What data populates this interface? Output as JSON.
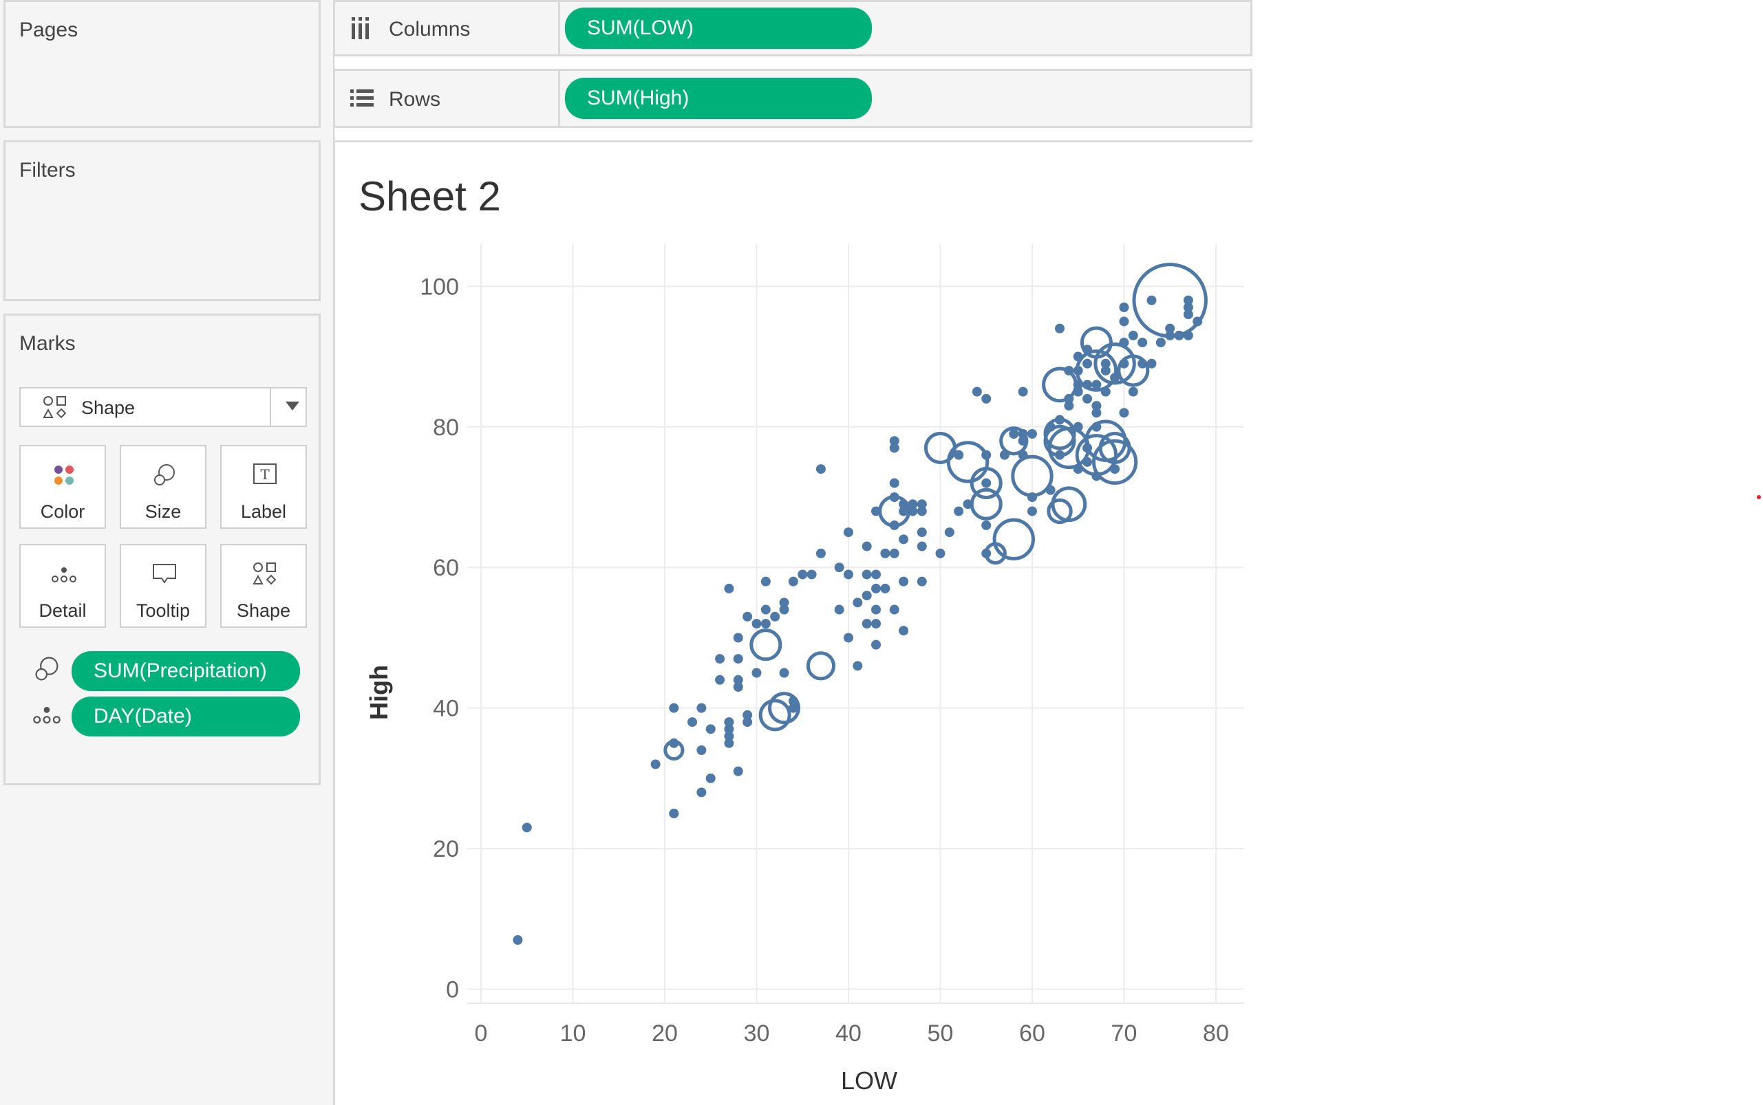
{
  "sidebar": {
    "pages_title": "Pages",
    "filters_title": "Filters",
    "marks": {
      "title": "Marks",
      "mark_type": "Shape",
      "cards": [
        {
          "label": "Color",
          "icon": "color-icon"
        },
        {
          "label": "Size",
          "icon": "size-icon"
        },
        {
          "label": "Label",
          "icon": "label-icon"
        },
        {
          "label": "Detail",
          "icon": "detail-icon"
        },
        {
          "label": "Tooltip",
          "icon": "tooltip-icon"
        },
        {
          "label": "Shape",
          "icon": "shape-icon"
        }
      ],
      "fields": [
        {
          "label": "SUM(Precipitation)",
          "icon": "size-icon"
        },
        {
          "label": "DAY(Date)",
          "icon": "detail-icon"
        }
      ]
    }
  },
  "shelves": {
    "columns": {
      "label": "Columns",
      "pill": "SUM(LOW)"
    },
    "rows": {
      "label": "Rows",
      "pill": "SUM(High)"
    }
  },
  "sheet": {
    "title": "Sheet 2"
  },
  "colors": {
    "mark": "#4e79a7",
    "pill": "#00b079",
    "grid": "#ececec"
  },
  "chart_data": {
    "type": "scatter",
    "xlabel": "LOW",
    "ylabel": "High",
    "xlim": [
      0,
      83
    ],
    "ylim": [
      -2,
      106
    ],
    "xticks": [
      0,
      10,
      20,
      30,
      40,
      50,
      60,
      70,
      80
    ],
    "yticks": [
      0,
      20,
      40,
      60,
      80,
      100
    ],
    "grid": true,
    "points": [
      [
        4,
        7,
        0
      ],
      [
        5,
        23,
        0
      ],
      [
        19,
        32,
        0
      ],
      [
        21,
        25,
        0
      ],
      [
        21,
        35,
        0
      ],
      [
        21,
        34,
        0.3
      ],
      [
        21,
        40,
        0
      ],
      [
        23,
        38,
        0
      ],
      [
        24,
        28,
        0
      ],
      [
        24,
        34,
        0
      ],
      [
        24,
        40,
        0
      ],
      [
        25,
        30,
        0
      ],
      [
        25,
        37,
        0
      ],
      [
        26,
        44,
        0
      ],
      [
        26,
        47,
        0
      ],
      [
        27,
        35,
        0
      ],
      [
        27,
        36,
        0
      ],
      [
        27,
        37,
        0
      ],
      [
        27,
        38,
        0
      ],
      [
        28,
        31,
        0
      ],
      [
        28,
        43,
        0
      ],
      [
        28,
        44,
        0
      ],
      [
        28,
        47,
        0
      ],
      [
        28,
        50,
        0
      ],
      [
        29,
        38,
        0
      ],
      [
        29,
        39,
        0
      ],
      [
        29,
        53,
        0
      ],
      [
        27,
        57,
        0
      ],
      [
        30,
        45,
        0
      ],
      [
        30,
        52,
        0
      ],
      [
        31,
        49,
        1.0
      ],
      [
        31,
        52,
        0
      ],
      [
        31,
        54,
        0
      ],
      [
        31,
        58,
        0
      ],
      [
        32,
        39,
        1.0
      ],
      [
        32,
        53,
        0
      ],
      [
        33,
        40,
        1.0
      ],
      [
        33,
        54,
        0
      ],
      [
        33,
        45,
        0
      ],
      [
        33,
        55,
        0
      ],
      [
        34,
        40,
        0
      ],
      [
        34,
        41,
        0
      ],
      [
        34,
        58,
        0
      ],
      [
        35,
        59,
        0
      ],
      [
        36,
        59,
        0
      ],
      [
        37,
        46,
        0.8
      ],
      [
        37,
        62,
        0
      ],
      [
        37,
        74,
        0
      ],
      [
        39,
        54,
        0
      ],
      [
        39,
        60,
        0
      ],
      [
        40,
        50,
        0
      ],
      [
        40,
        59,
        0
      ],
      [
        40,
        65,
        0
      ],
      [
        41,
        46,
        0
      ],
      [
        41,
        55,
        0
      ],
      [
        42,
        52,
        0
      ],
      [
        42,
        56,
        0
      ],
      [
        42,
        59,
        0
      ],
      [
        42,
        63,
        0
      ],
      [
        43,
        49,
        0
      ],
      [
        43,
        52,
        0
      ],
      [
        43,
        54,
        0
      ],
      [
        43,
        57,
        0
      ],
      [
        43,
        59,
        0
      ],
      [
        43,
        68,
        0
      ],
      [
        44,
        57,
        0
      ],
      [
        44,
        62,
        0
      ],
      [
        45,
        54,
        0
      ],
      [
        45,
        62,
        0
      ],
      [
        45,
        66,
        0
      ],
      [
        45,
        70,
        0
      ],
      [
        45,
        72,
        0
      ],
      [
        45,
        77,
        0
      ],
      [
        45,
        78,
        0
      ],
      [
        45,
        68,
        1.0
      ],
      [
        46,
        51,
        0
      ],
      [
        46,
        58,
        0
      ],
      [
        46,
        64,
        0
      ],
      [
        46,
        68,
        0
      ],
      [
        46,
        69,
        0
      ],
      [
        47,
        68,
        0
      ],
      [
        47,
        69,
        0
      ],
      [
        48,
        63,
        0
      ],
      [
        48,
        65,
        0
      ],
      [
        48,
        68,
        0
      ],
      [
        48,
        69,
        0
      ],
      [
        48,
        58,
        0
      ],
      [
        50,
        62,
        0
      ],
      [
        50,
        77,
        1.0
      ],
      [
        51,
        65,
        0
      ],
      [
        52,
        68,
        0
      ],
      [
        52,
        76,
        0
      ],
      [
        53,
        69,
        0
      ],
      [
        53,
        75,
        1.6
      ],
      [
        54,
        85,
        0
      ],
      [
        55,
        62,
        0
      ],
      [
        55,
        66,
        0
      ],
      [
        55,
        69,
        1.0
      ],
      [
        55,
        72,
        1.0
      ],
      [
        55,
        72,
        0
      ],
      [
        55,
        76,
        0
      ],
      [
        55,
        84,
        0
      ],
      [
        56,
        62,
        0.4
      ],
      [
        57,
        76,
        0
      ],
      [
        58,
        64,
        1.6
      ],
      [
        58,
        78,
        0.8
      ],
      [
        58,
        79,
        0
      ],
      [
        59,
        76,
        0
      ],
      [
        59,
        78,
        0
      ],
      [
        59,
        79,
        0
      ],
      [
        59,
        85,
        0
      ],
      [
        60,
        68,
        0
      ],
      [
        60,
        70,
        0
      ],
      [
        60,
        73,
        1.6
      ],
      [
        60,
        79,
        0
      ],
      [
        62,
        71,
        0
      ],
      [
        62,
        80,
        0
      ],
      [
        63,
        68,
        0.6
      ],
      [
        63,
        76,
        0
      ],
      [
        63,
        78,
        1.0
      ],
      [
        63,
        79,
        1.0
      ],
      [
        63,
        81,
        0
      ],
      [
        63,
        86,
        1.2
      ],
      [
        63,
        94,
        0
      ],
      [
        64,
        69,
        1.2
      ],
      [
        64,
        77,
        1.6
      ],
      [
        64,
        83,
        0
      ],
      [
        64,
        84,
        0
      ],
      [
        64,
        88,
        0
      ],
      [
        65,
        74,
        0
      ],
      [
        65,
        80,
        0
      ],
      [
        65,
        85,
        0
      ],
      [
        65,
        86,
        0
      ],
      [
        65,
        88,
        0
      ],
      [
        65,
        90,
        0
      ],
      [
        66,
        75,
        0
      ],
      [
        66,
        77,
        0
      ],
      [
        66,
        84,
        0
      ],
      [
        66,
        86,
        0
      ],
      [
        66,
        89,
        0
      ],
      [
        66,
        91,
        0
      ],
      [
        67,
        73,
        0
      ],
      [
        67,
        76,
        1.6
      ],
      [
        67,
        80,
        0
      ],
      [
        67,
        82,
        0
      ],
      [
        67,
        83,
        0
      ],
      [
        67,
        86,
        0
      ],
      [
        67,
        88,
        1.6
      ],
      [
        67,
        92,
        1.0
      ],
      [
        68,
        78,
        1.6
      ],
      [
        68,
        85,
        0
      ],
      [
        68,
        88,
        0
      ],
      [
        68,
        89,
        0
      ],
      [
        69,
        74,
        0
      ],
      [
        69,
        77,
        1.0
      ],
      [
        69,
        75,
        1.8
      ],
      [
        69,
        87,
        0
      ],
      [
        69,
        89,
        1.6
      ],
      [
        70,
        82,
        0
      ],
      [
        70,
        89,
        0
      ],
      [
        70,
        92,
        0
      ],
      [
        70,
        95,
        0
      ],
      [
        70,
        97,
        0
      ],
      [
        71,
        85,
        0
      ],
      [
        71,
        88,
        1.0
      ],
      [
        71,
        93,
        0
      ],
      [
        72,
        89,
        0
      ],
      [
        72,
        92,
        0
      ],
      [
        73,
        89,
        0
      ],
      [
        73,
        98,
        0
      ],
      [
        74,
        92,
        0
      ],
      [
        75,
        93,
        0
      ],
      [
        75,
        94,
        0
      ],
      [
        75,
        98,
        3.6
      ],
      [
        76,
        93,
        0
      ],
      [
        77,
        96,
        0
      ],
      [
        77,
        97,
        0
      ],
      [
        77,
        98,
        0
      ],
      [
        77,
        93,
        0
      ],
      [
        78,
        95,
        0
      ]
    ]
  }
}
